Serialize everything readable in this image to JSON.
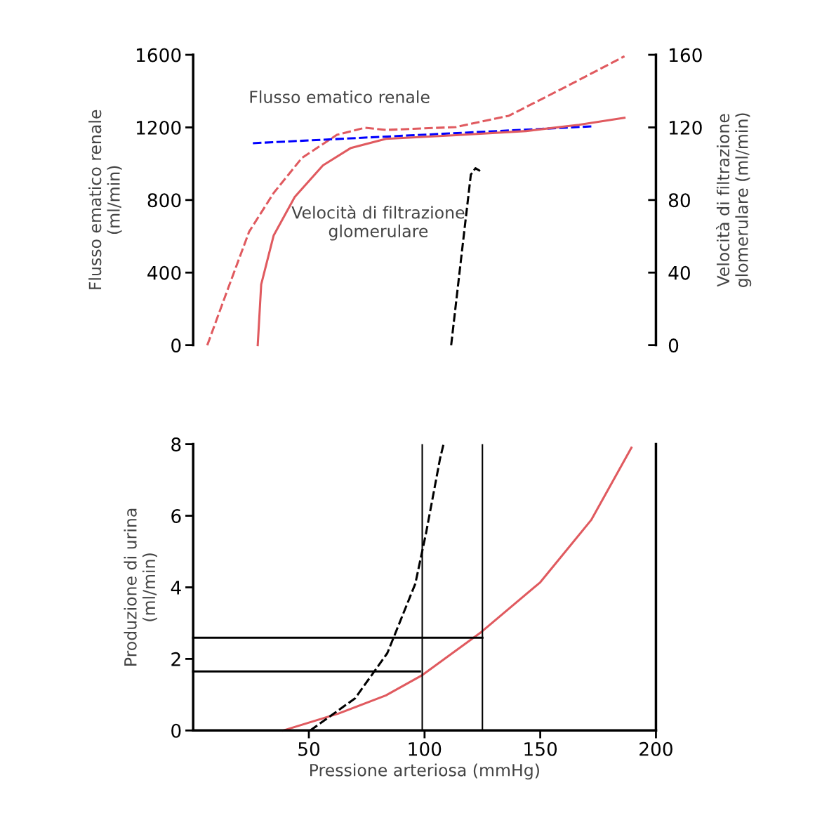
{
  "chart_data": [
    {
      "type": "line",
      "ylabel": "Flusso ematico renale\n(ml/min)",
      "y2label": "Velocità di filtrazione\nglomerulare (ml/min)",
      "xlim": [
        0,
        200
      ],
      "ylim": [
        0,
        1600
      ],
      "yticks": [
        0,
        400,
        800,
        1200,
        1600
      ],
      "y2lim": [
        0,
        160
      ],
      "y2ticks": [
        0,
        40,
        80,
        120,
        160
      ],
      "tick_labels": "y",
      "grid": false,
      "legend": false,
      "marker": "none",
      "series": [
        {
          "name": "Flusso ematico renale",
          "color": "#e05a5f",
          "line_style": "dashed",
          "axis": "y",
          "x": [
            6.1,
            15.2,
            24.2,
            34.8,
            47,
            62.1,
            74.2,
            83.3,
            113.6,
            136.4,
            159.1,
            186.4
          ],
          "values": [
            0,
            317,
            626,
            839,
            1032,
            1159,
            1198,
            1186,
            1202,
            1264,
            1411,
            1592
          ]
        },
        {
          "name": "Velocità di filtrazione\nglomerulare",
          "color": "#e05a5f",
          "line_style": "solid",
          "axis": "y2",
          "x": [
            27.9,
            29.4,
            34.8,
            43.9,
            56.1,
            68.2,
            83.3,
            113.6,
            143.9,
            166.7,
            186.4
          ],
          "values": [
            0,
            33.5,
            60.5,
            81.7,
            99.1,
            108.7,
            113.7,
            115.7,
            118.0,
            121.4,
            125.3
          ]
        },
        {
          "color": "#0000ff",
          "line_style": "dashed",
          "axis": "y",
          "x": [
            25.8,
            172.7
          ],
          "values": [
            1113,
            1206
          ]
        },
        {
          "color": "#000000",
          "line_style": "dashed",
          "axis": "y",
          "x": [
            111.5,
            116,
            120,
            122,
            124
          ],
          "values": [
            0,
            500,
            940,
            975,
            960
          ]
        }
      ]
    },
    {
      "type": "line",
      "xlabel": "Pressione arteriosa (mmHg)",
      "ylabel": "Produzione di urina\n(ml/min)",
      "xlim": [
        0,
        200
      ],
      "xticks": [
        50,
        100,
        150,
        200
      ],
      "ylim": [
        0,
        8
      ],
      "yticks": [
        0,
        2,
        4,
        6,
        8
      ],
      "grid": false,
      "legend": false,
      "marker": "none",
      "series": [
        {
          "color": "#e05a5f",
          "line_style": "solid",
          "x": [
            38.9,
            62.7,
            83.3,
            99.1,
            124.5,
            150,
            172,
            189.4
          ],
          "values": [
            0,
            0.47,
            0.98,
            1.55,
            2.75,
            4.14,
            5.88,
            7.9
          ]
        },
        {
          "color": "#000000",
          "line_style": "dashed",
          "x": [
            50.6,
            70,
            83.9,
            96,
            100.6,
            106.7,
            108.2
          ],
          "values": [
            0,
            0.9,
            2.16,
            4.1,
            5.5,
            7.6,
            8
          ]
        },
        {
          "color": "#000000",
          "line_style": "solid",
          "x": [
            0,
            98
          ],
          "values": [
            1.65,
            1.65
          ]
        },
        {
          "color": "#000000",
          "line_style": "solid",
          "x": [
            0,
            125
          ],
          "values": [
            2.59,
            2.59
          ]
        }
      ],
      "ref_lines": [
        {
          "axis": "x",
          "value": 99,
          "color": "#000000",
          "line_style": "solid"
        },
        {
          "axis": "x",
          "value": 125,
          "color": "#000000",
          "line_style": "solid"
        }
      ]
    }
  ]
}
